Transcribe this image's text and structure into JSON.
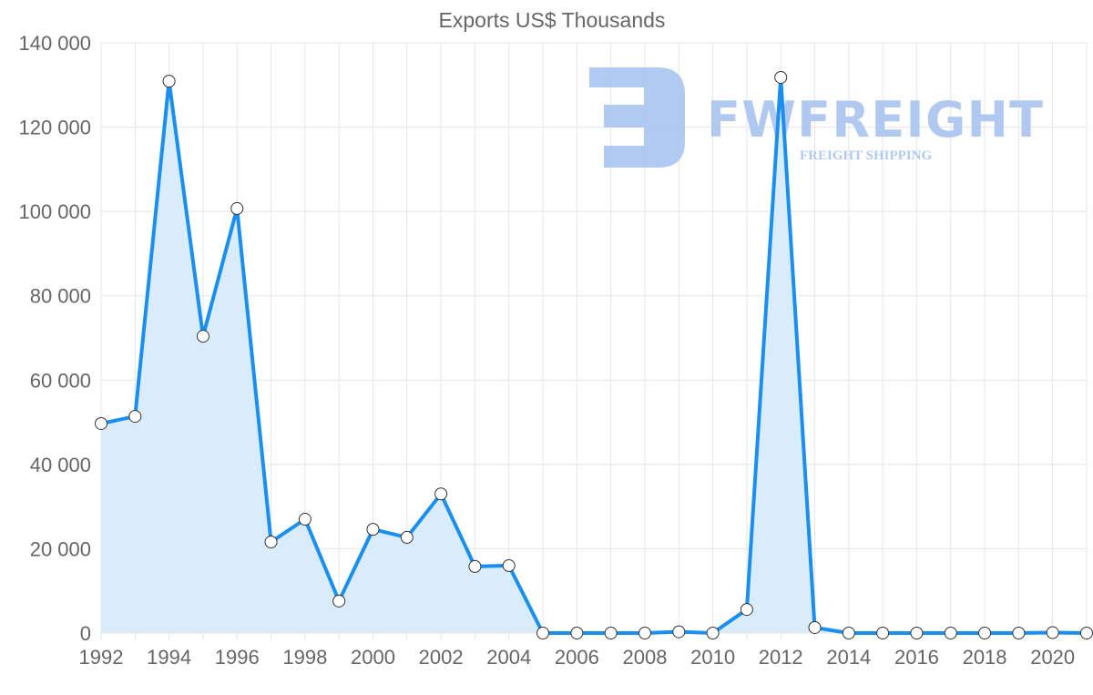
{
  "chart_data": {
    "type": "line",
    "title": "Exports US$ Thousands",
    "xlabel": "",
    "ylabel": "",
    "ylim": [
      0,
      140000
    ],
    "yticks": [
      0,
      20000,
      40000,
      60000,
      80000,
      100000,
      120000,
      140000
    ],
    "ytick_labels": [
      "0",
      "20 000",
      "40 000",
      "60 000",
      "80 000",
      "100 000",
      "120 000",
      "140 000"
    ],
    "x": [
      1992,
      1993,
      1994,
      1995,
      1996,
      1997,
      1998,
      1999,
      2000,
      2001,
      2002,
      2003,
      2004,
      2005,
      2006,
      2007,
      2008,
      2009,
      2010,
      2011,
      2012,
      2013,
      2014,
      2015,
      2016,
      2017,
      2018,
      2019,
      2020,
      2021
    ],
    "xtick_labels": [
      "1992",
      "1994",
      "1996",
      "1998",
      "2000",
      "2002",
      "2004",
      "2006",
      "2008",
      "2010",
      "2012",
      "2014",
      "2016",
      "2018",
      "2020"
    ],
    "series": [
      {
        "name": "Exports US$ Thousands",
        "values": [
          49700,
          51400,
          130900,
          70400,
          100700,
          21600,
          27000,
          7600,
          24600,
          22700,
          33000,
          15800,
          16000,
          0,
          0,
          0,
          0,
          300,
          0,
          5600,
          131800,
          1300,
          0,
          0,
          0,
          0,
          0,
          0,
          100,
          0
        ],
        "color": "#1a8ff0",
        "fill": "#d9ecfc"
      }
    ],
    "grid": true,
    "legend": "none"
  },
  "watermark": {
    "brand": "FWFREIGHT",
    "tagline": "FREIGHT SHIPPING"
  }
}
